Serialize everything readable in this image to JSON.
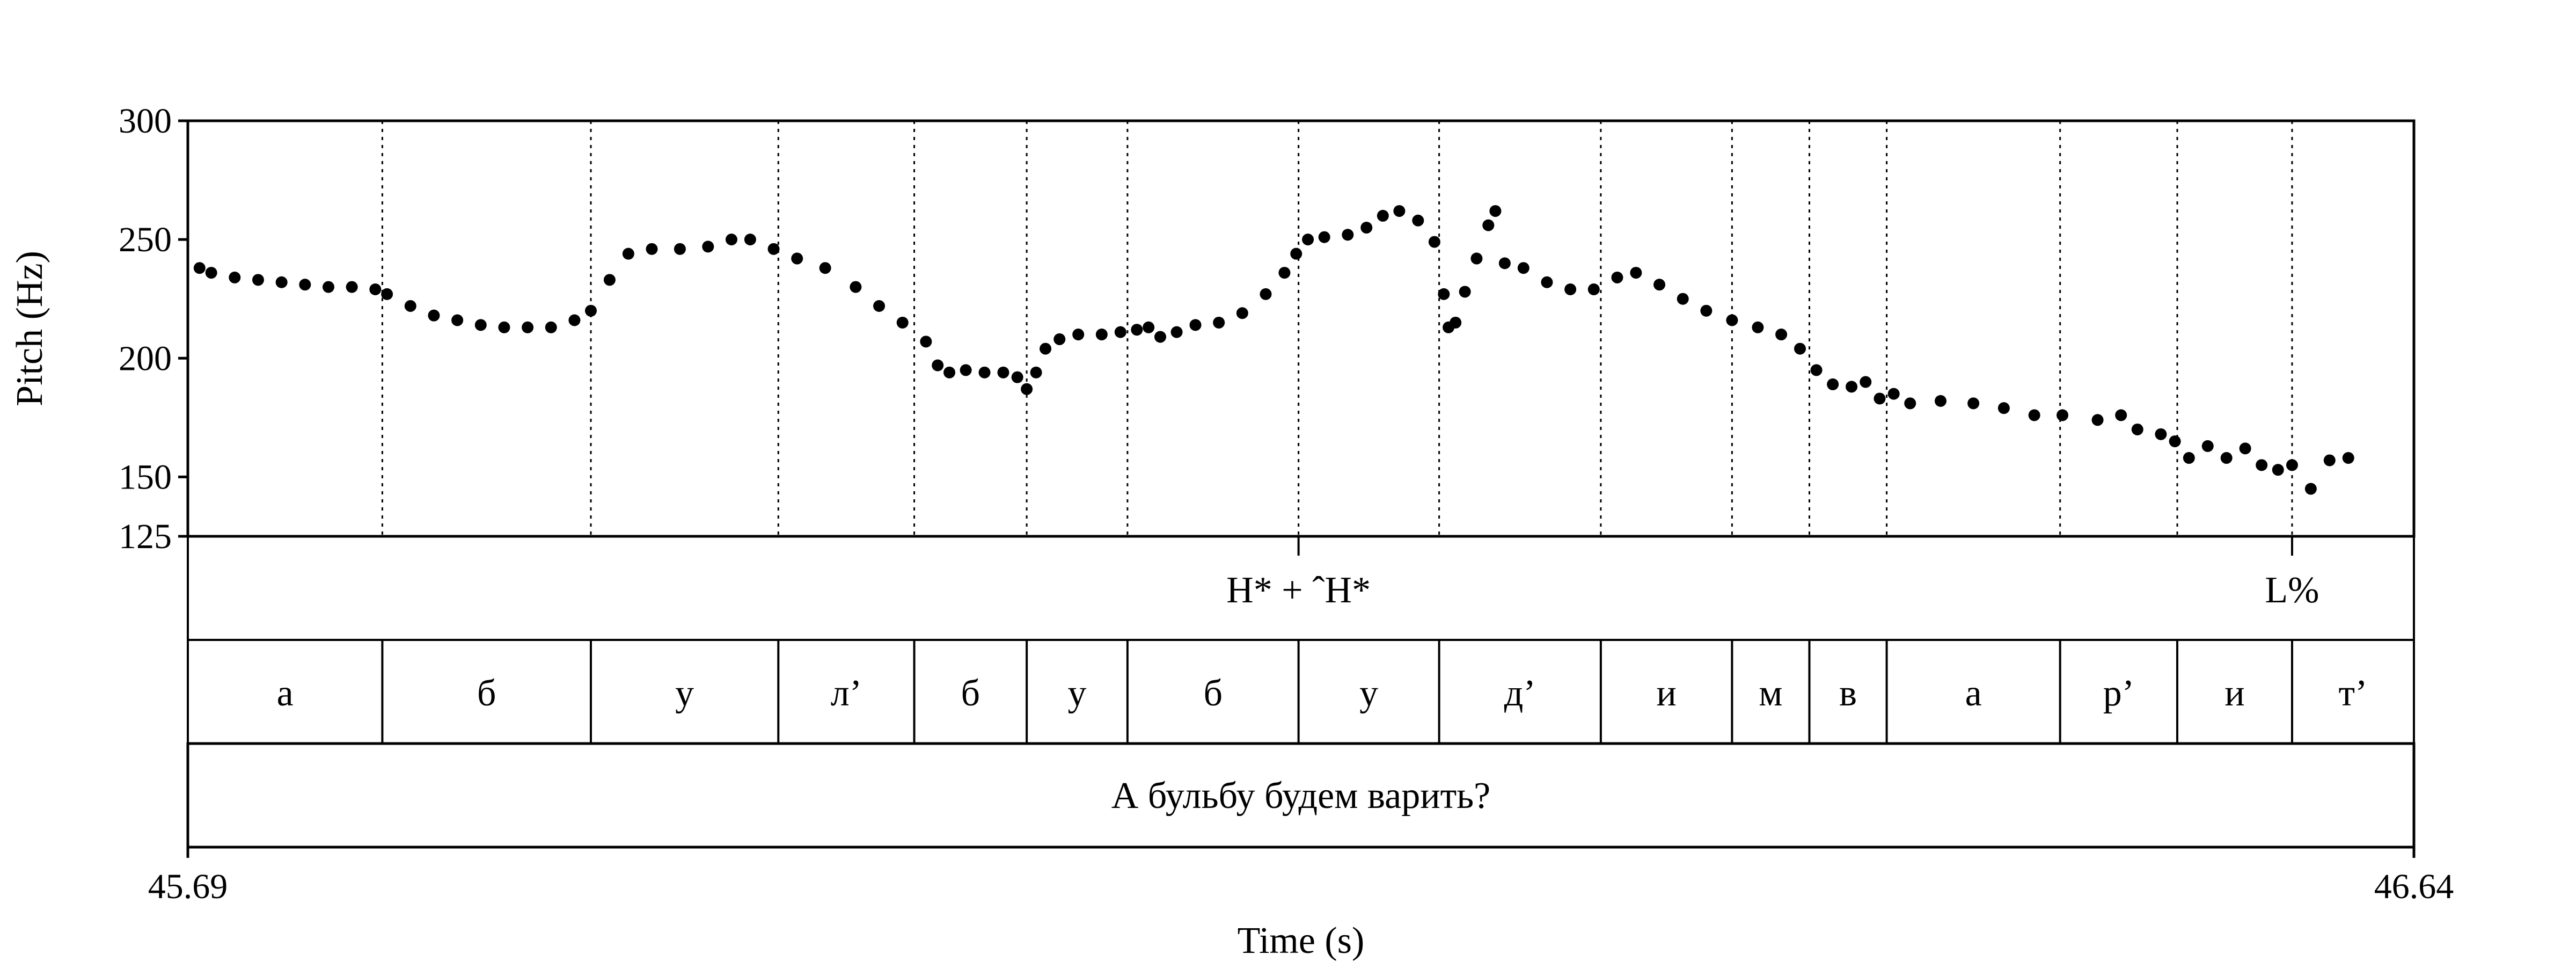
{
  "chart_data": {
    "type": "scatter",
    "xlabel": "Time (s)",
    "ylabel": "Pitch (Hz)",
    "xlim": [
      45.69,
      46.64
    ],
    "ylim": [
      125,
      300
    ],
    "x_tick_labels": [
      "45.69",
      "46.64"
    ],
    "y_ticks": [
      125,
      150,
      200,
      250,
      300
    ],
    "y_tick_labels": [
      "125",
      "150",
      "200",
      "250",
      "300"
    ],
    "segment_boundaries": [
      45.773,
      45.862,
      45.942,
      46.0,
      46.048,
      46.091,
      46.164,
      46.224,
      46.293,
      46.349,
      46.382,
      46.415,
      46.489,
      46.539,
      46.588
    ],
    "tone_marks": [
      {
        "t": 46.164,
        "label": "H* + ˆH*"
      },
      {
        "t": 46.588,
        "label": "L%"
      }
    ],
    "segments": [
      {
        "start": 45.69,
        "end": 45.773,
        "label": "а"
      },
      {
        "start": 45.773,
        "end": 45.862,
        "label": "б"
      },
      {
        "start": 45.862,
        "end": 45.942,
        "label": "у"
      },
      {
        "start": 45.942,
        "end": 46.0,
        "label": "л’"
      },
      {
        "start": 46.0,
        "end": 46.048,
        "label": "б"
      },
      {
        "start": 46.048,
        "end": 46.091,
        "label": "у"
      },
      {
        "start": 46.091,
        "end": 46.164,
        "label": "б"
      },
      {
        "start": 46.164,
        "end": 46.224,
        "label": "у"
      },
      {
        "start": 46.224,
        "end": 46.293,
        "label": "д’"
      },
      {
        "start": 46.293,
        "end": 46.349,
        "label": "и"
      },
      {
        "start": 46.349,
        "end": 46.382,
        "label": "м"
      },
      {
        "start": 46.382,
        "end": 46.415,
        "label": "в"
      },
      {
        "start": 46.415,
        "end": 46.489,
        "label": "а"
      },
      {
        "start": 46.489,
        "end": 46.539,
        "label": "р’"
      },
      {
        "start": 46.539,
        "end": 46.588,
        "label": "и"
      },
      {
        "start": 46.588,
        "end": 46.64,
        "label": "т’"
      }
    ],
    "sentence": "А бульбу будем варить?",
    "pitch_contour": [
      [
        45.695,
        238
      ],
      [
        45.7,
        236
      ],
      [
        45.71,
        234
      ],
      [
        45.72,
        233
      ],
      [
        45.73,
        232
      ],
      [
        45.74,
        231
      ],
      [
        45.75,
        230
      ],
      [
        45.76,
        230
      ],
      [
        45.77,
        229
      ],
      [
        45.775,
        227
      ],
      [
        45.785,
        222
      ],
      [
        45.795,
        218
      ],
      [
        45.805,
        216
      ],
      [
        45.815,
        214
      ],
      [
        45.825,
        213
      ],
      [
        45.835,
        213
      ],
      [
        45.845,
        213
      ],
      [
        45.855,
        216
      ],
      [
        45.862,
        220
      ],
      [
        45.87,
        233
      ],
      [
        45.878,
        244
      ],
      [
        45.888,
        246
      ],
      [
        45.9,
        246
      ],
      [
        45.912,
        247
      ],
      [
        45.922,
        250
      ],
      [
        45.93,
        250
      ],
      [
        45.94,
        246
      ],
      [
        45.95,
        242
      ],
      [
        45.962,
        238
      ],
      [
        45.975,
        230
      ],
      [
        45.985,
        222
      ],
      [
        45.995,
        215
      ],
      [
        46.005,
        207
      ],
      [
        46.01,
        197
      ],
      [
        46.015,
        194
      ],
      [
        46.022,
        195
      ],
      [
        46.03,
        194
      ],
      [
        46.038,
        194
      ],
      [
        46.044,
        192
      ],
      [
        46.048,
        187
      ],
      [
        46.052,
        194
      ],
      [
        46.056,
        204
      ],
      [
        46.062,
        208
      ],
      [
        46.07,
        210
      ],
      [
        46.08,
        210
      ],
      [
        46.088,
        211
      ],
      [
        46.095,
        212
      ],
      [
        46.1,
        213
      ],
      [
        46.105,
        209
      ],
      [
        46.112,
        211
      ],
      [
        46.12,
        214
      ],
      [
        46.13,
        215
      ],
      [
        46.14,
        219
      ],
      [
        46.15,
        227
      ],
      [
        46.158,
        236
      ],
      [
        46.163,
        244
      ],
      [
        46.168,
        250
      ],
      [
        46.175,
        251
      ],
      [
        46.185,
        252
      ],
      [
        46.193,
        255
      ],
      [
        46.2,
        260
      ],
      [
        46.207,
        262
      ],
      [
        46.215,
        258
      ],
      [
        46.222,
        249
      ],
      [
        46.226,
        227
      ],
      [
        46.228,
        213
      ],
      [
        46.231,
        215
      ],
      [
        46.235,
        228
      ],
      [
        46.24,
        242
      ],
      [
        46.245,
        256
      ],
      [
        46.248,
        262
      ],
      [
        46.252,
        240
      ],
      [
        46.26,
        238
      ],
      [
        46.27,
        232
      ],
      [
        46.28,
        229
      ],
      [
        46.29,
        229
      ],
      [
        46.3,
        234
      ],
      [
        46.308,
        236
      ],
      [
        46.318,
        231
      ],
      [
        46.328,
        225
      ],
      [
        46.338,
        220
      ],
      [
        46.349,
        216
      ],
      [
        46.36,
        213
      ],
      [
        46.37,
        210
      ],
      [
        46.378,
        204
      ],
      [
        46.385,
        195
      ],
      [
        46.392,
        189
      ],
      [
        46.4,
        188
      ],
      [
        46.406,
        190
      ],
      [
        46.412,
        183
      ],
      [
        46.418,
        185
      ],
      [
        46.425,
        181
      ],
      [
        46.438,
        182
      ],
      [
        46.452,
        181
      ],
      [
        46.465,
        179
      ],
      [
        46.478,
        176
      ],
      [
        46.49,
        176
      ],
      [
        46.505,
        174
      ],
      [
        46.515,
        176
      ],
      [
        46.522,
        170
      ],
      [
        46.532,
        168
      ],
      [
        46.538,
        165
      ],
      [
        46.544,
        158
      ],
      [
        46.552,
        163
      ],
      [
        46.56,
        158
      ],
      [
        46.568,
        162
      ],
      [
        46.575,
        155
      ],
      [
        46.582,
        153
      ],
      [
        46.588,
        155
      ],
      [
        46.596,
        145
      ],
      [
        46.604,
        157
      ],
      [
        46.612,
        158
      ]
    ]
  }
}
